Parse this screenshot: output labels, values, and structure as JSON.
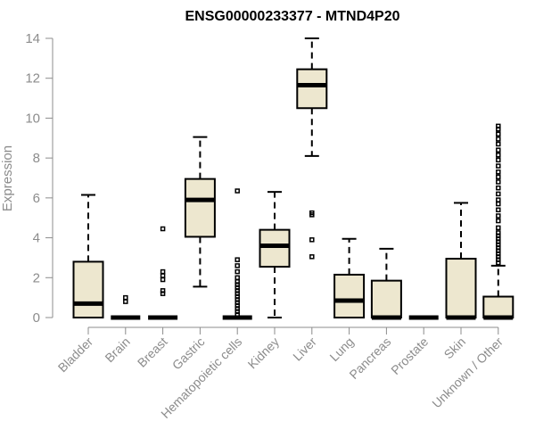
{
  "chart_data": {
    "type": "boxplot",
    "title": "ENSG00000233377 - MTND4P20",
    "ylabel": "Expression",
    "xlabel": "",
    "ylim": [
      0,
      14
    ],
    "yticks": [
      0,
      2,
      4,
      6,
      8,
      10,
      12,
      14
    ],
    "categories": [
      "Bladder",
      "Brain",
      "Breast",
      "Gastric",
      "Hematopoietic cells",
      "Kidney",
      "Liver",
      "Lung",
      "Pancreas",
      "Prostate",
      "Skin",
      "Unknown / Other"
    ],
    "boxes": [
      {
        "q1": 0.0,
        "median": 0.7,
        "q3": 2.8,
        "whisker_low": 0.0,
        "whisker_high": 6.15,
        "outliers": []
      },
      {
        "q1": 0.0,
        "median": 0.0,
        "q3": 0.0,
        "whisker_low": 0.0,
        "whisker_high": 0.0,
        "outliers": [
          0.8,
          1.0
        ]
      },
      {
        "q1": 0.0,
        "median": 0.0,
        "q3": 0.0,
        "whisker_low": 0.0,
        "whisker_high": 0.0,
        "outliers": [
          1.2,
          1.35,
          1.9,
          2.1,
          2.3,
          4.45
        ]
      },
      {
        "q1": 4.05,
        "median": 5.9,
        "q3": 6.95,
        "whisker_low": 1.55,
        "whisker_high": 9.05,
        "outliers": []
      },
      {
        "q1": 0.0,
        "median": 0.0,
        "q3": 0.0,
        "whisker_low": 0.0,
        "whisker_high": 0.0,
        "outliers": [
          0.15,
          0.3,
          0.45,
          0.6,
          0.75,
          0.9,
          1.05,
          1.2,
          1.35,
          1.5,
          1.65,
          1.8,
          2.0,
          2.3,
          2.6,
          2.9,
          6.35
        ]
      },
      {
        "q1": 2.55,
        "median": 3.6,
        "q3": 4.4,
        "whisker_low": 0.0,
        "whisker_high": 6.3,
        "outliers": []
      },
      {
        "q1": 10.5,
        "median": 11.65,
        "q3": 12.45,
        "whisker_low": 8.1,
        "whisker_high": 14.0,
        "outliers": [
          5.25,
          5.15,
          3.9,
          3.05
        ]
      },
      {
        "q1": 0.0,
        "median": 0.85,
        "q3": 2.15,
        "whisker_low": 0.0,
        "whisker_high": 3.95,
        "outliers": []
      },
      {
        "q1": 0.0,
        "median": 0.0,
        "q3": 1.85,
        "whisker_low": 0.0,
        "whisker_high": 3.45,
        "outliers": []
      },
      {
        "q1": 0.0,
        "median": 0.0,
        "q3": 0.0,
        "whisker_low": 0.0,
        "whisker_high": 0.0,
        "outliers": []
      },
      {
        "q1": 0.0,
        "median": 0.0,
        "q3": 2.95,
        "whisker_low": 0.0,
        "whisker_high": 5.75,
        "outliers": []
      },
      {
        "q1": 0.0,
        "median": 0.0,
        "q3": 1.05,
        "whisker_low": 0.0,
        "whisker_high": 2.6,
        "outliers": [
          2.75,
          2.9,
          3.05,
          3.2,
          3.35,
          3.5,
          3.65,
          3.8,
          3.95,
          4.1,
          4.25,
          4.5,
          4.85,
          5.1,
          5.4,
          5.7,
          5.9,
          6.2,
          6.5,
          6.8,
          7.05,
          7.3,
          7.6,
          7.9,
          8.15,
          8.4,
          8.7,
          8.95,
          9.2,
          9.45,
          9.6
        ]
      }
    ],
    "grid": false,
    "legend": "none",
    "colors": {
      "box_fill": "#ede7cf",
      "stroke": "#000000",
      "axis": "#8c8c8c"
    }
  }
}
